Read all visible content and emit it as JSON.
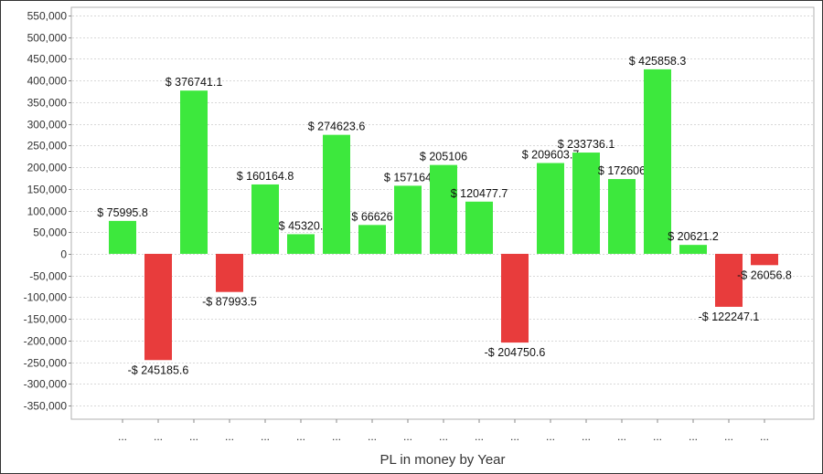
{
  "chart_data": {
    "type": "bar",
    "title": "",
    "xlabel": "PL in money by Year",
    "ylabel": "",
    "ylim": [
      -350000,
      550000
    ],
    "ytick_step": 50000,
    "grid": true,
    "categories": [
      "...",
      "...",
      "...",
      "...",
      "...",
      "...",
      "...",
      "...",
      "...",
      "...",
      "...",
      "...",
      "...",
      "...",
      "...",
      "...",
      "...",
      "...",
      "..."
    ],
    "values": [
      75995.8,
      -245185.6,
      376741.1,
      -87993.5,
      160164.8,
      45320,
      274623.6,
      66626,
      157164,
      205106,
      120477.7,
      -204750.6,
      209603.7,
      233736.1,
      172606,
      425858.3,
      20621.2,
      -122247.1,
      -26056.8
    ],
    "data_labels": [
      "$ 75995.8",
      "-$ 245185.6",
      "$ 376741.1",
      "-$ 87993.5",
      "$ 160164.8",
      "$ 45320.",
      "$ 274623.6",
      "$ 66626",
      "$ 157164",
      "$ 205106",
      "$ 120477.7",
      "-$ 204750.6",
      "$ 209603.7",
      "$ 233736.1",
      "$ 172606",
      "$ 425858.3",
      "$ 20621.2",
      "-$ 122247.1",
      "-$ 26056.8"
    ],
    "colors": {
      "positive": "#3de83d",
      "negative": "#e83c3c"
    }
  }
}
